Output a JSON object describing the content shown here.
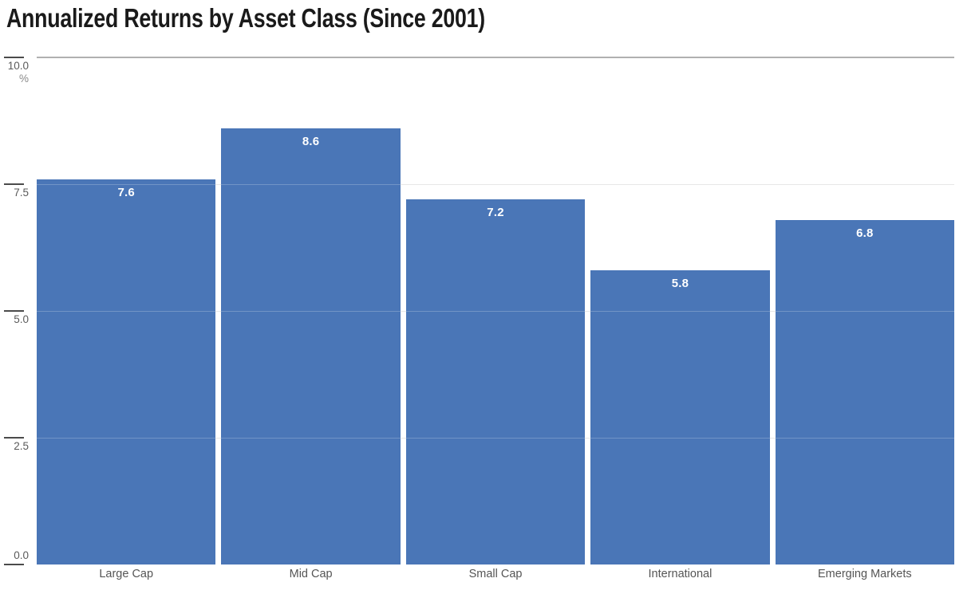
{
  "title": "Annualized Returns by Asset Class (Since 2001)",
  "chart_data": {
    "type": "bar",
    "title": "Annualized Returns by Asset Class (Since 2001)",
    "categories": [
      "Large Cap",
      "Mid Cap",
      "Small Cap",
      "International",
      "Emerging Markets"
    ],
    "values": [
      7.6,
      8.6,
      7.2,
      5.8,
      6.8
    ],
    "value_labels": [
      "7.6",
      "8.6",
      "7.2",
      "5.8",
      "6.8"
    ],
    "unit": "%",
    "xlabel": "",
    "ylabel": "%",
    "ylim": [
      0,
      10
    ],
    "yticks": [
      10.0,
      7.5,
      5.0,
      2.5,
      0.0
    ],
    "ytick_labels": [
      "10.0",
      "7.5",
      "5.0",
      "2.5",
      "0.0"
    ],
    "gridline_values": [
      7.5,
      5.0,
      2.5
    ],
    "grid": true,
    "legend": false,
    "colors": {
      "bar": "#4a76b7",
      "value_label": "#ffffff",
      "title_text": "#1a1a1a",
      "axis_text": "#5a5a5a",
      "gridline": "#e0e0e0",
      "axis_top_line": "#b0b0b0",
      "tick_mark": "#4b4b4b",
      "background": "#ffffff"
    }
  }
}
